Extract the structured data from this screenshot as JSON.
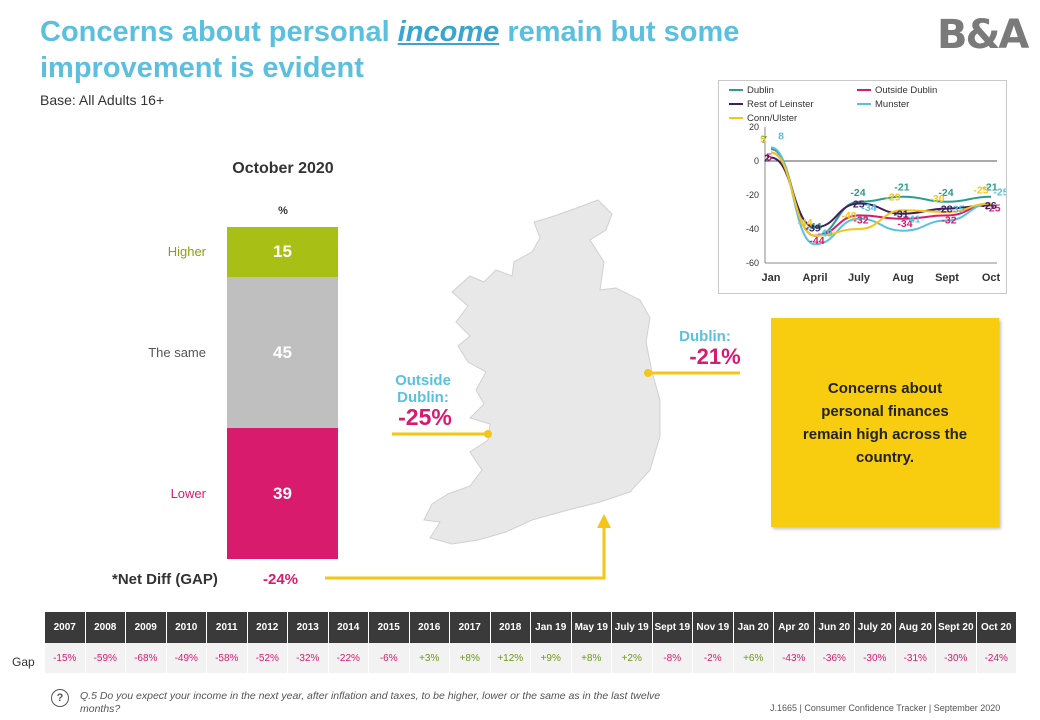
{
  "header": {
    "title_part1": "Concerns about personal ",
    "title_emph": "income",
    "title_part2": " remain but some improvement is evident",
    "base": "Base: All Adults 16+",
    "logo": "B&A"
  },
  "stack": {
    "column_title": "October 2020",
    "unit": "%",
    "segments": [
      {
        "label": "Higher",
        "value": 15,
        "color": "#a8c015"
      },
      {
        "label": "The same",
        "value": 45,
        "color": "#bfbfbf"
      },
      {
        "label": "Lower",
        "value": 39,
        "color": "#d81b6d"
      }
    ],
    "net_diff_label": "*Net Diff (GAP)",
    "net_diff_value": "-24%"
  },
  "regions": {
    "dublin_name": "Dublin:",
    "dublin_value": "-21%",
    "outside_name": "Outside Dublin:",
    "outside_value": "-25%"
  },
  "callout": "Concerns about personal finances remain high across the country.",
  "chart_data": {
    "type": "line",
    "x": [
      "Jan",
      "April",
      "July",
      "Aug",
      "Sept",
      "Oct"
    ],
    "ylim": [
      -60,
      20
    ],
    "yticks": [
      20,
      0,
      -20,
      -40,
      -60
    ],
    "series": [
      {
        "name": "Dublin",
        "color": "#2a9d8f",
        "values": [
          7,
          -44,
          -24,
          -21,
          -24,
          -21
        ]
      },
      {
        "name": "Outside Dublin",
        "color": "#d81b6d",
        "values": [
          5,
          -44,
          -32,
          -34,
          -32,
          -25
        ]
      },
      {
        "name": "Rest of Leinster",
        "color": "#3d1f5c",
        "values": [
          2,
          -39,
          -25,
          -31,
          -28,
          -26
        ]
      },
      {
        "name": "Munster",
        "color": "#5bc0e0",
        "values": [
          8,
          -49,
          -34,
          -41,
          -35,
          -25
        ]
      },
      {
        "name": "Conn/Ulster",
        "color": "#f5c518",
        "values": [
          5,
          -44,
          -40,
          -29,
          -30,
          -25
        ]
      }
    ]
  },
  "gap_table": {
    "row_label": "Gap",
    "periods": [
      "2007",
      "2008",
      "2009",
      "2010",
      "2011",
      "2012",
      "2013",
      "2014",
      "2015",
      "2016",
      "2017",
      "2018",
      "Jan 19",
      "May 19",
      "July 19",
      "Sept 19",
      "Nov 19",
      "Jan 20",
      "Apr 20",
      "Jun 20",
      "July 20",
      "Aug 20",
      "Sept 20",
      "Oct 20"
    ],
    "values": [
      "-15%",
      "-59%",
      "-68%",
      "-49%",
      "-58%",
      "-52%",
      "-32%",
      "-22%",
      "-6%",
      "+3%",
      "+8%",
      "+12%",
      "+9%",
      "+8%",
      "+2%",
      "-8%",
      "-2%",
      "+6%",
      "-43%",
      "-36%",
      "-30%",
      "-31%",
      "-30%",
      "-24%"
    ]
  },
  "footer": {
    "question_icon": "?",
    "question": "Q.5  Do you expect your income in the next year, after inflation and taxes, to be higher, lower or the same as in the last twelve months?",
    "source": "J.1665 | Consumer Confidence Tracker | September 2020"
  }
}
